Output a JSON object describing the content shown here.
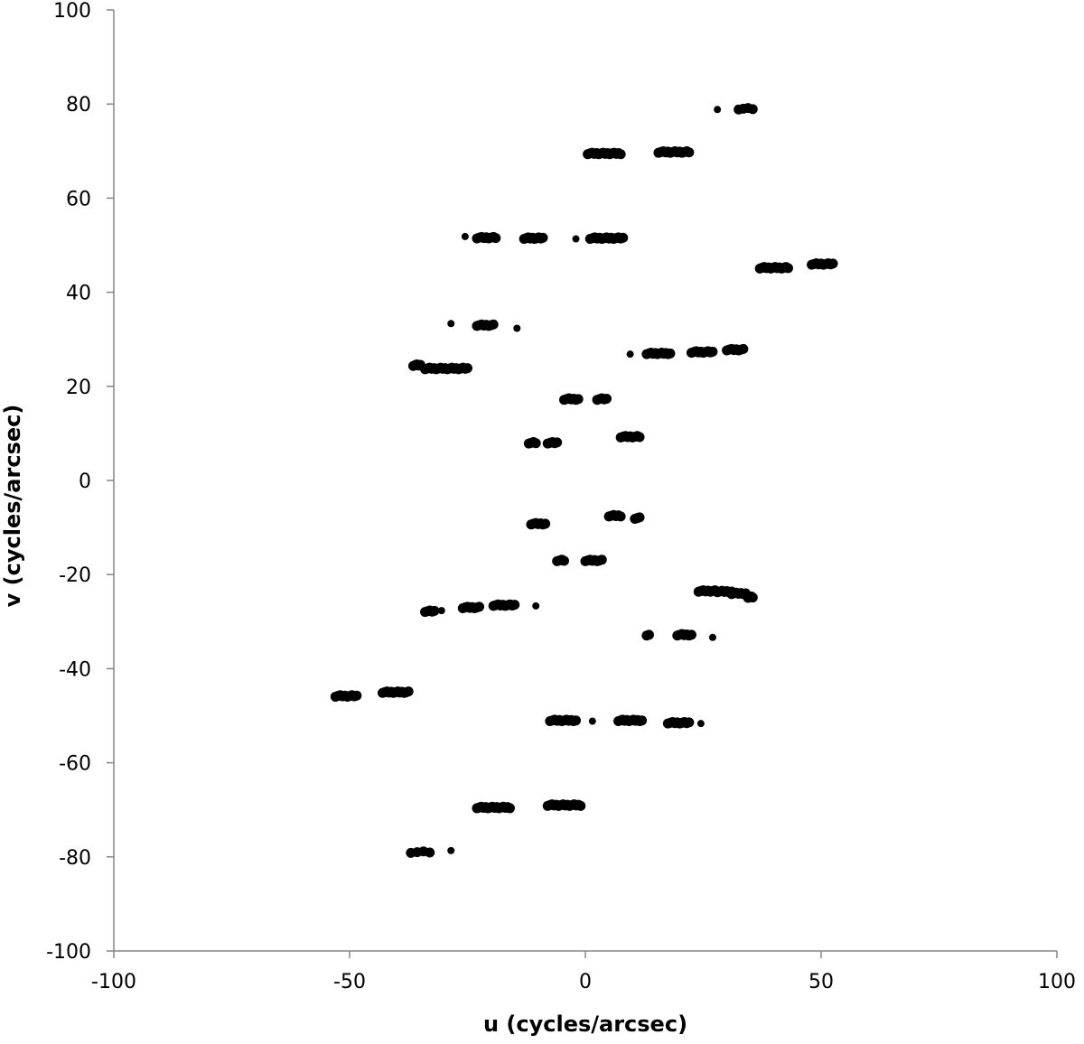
{
  "chart_data": {
    "type": "scatter",
    "title": "",
    "xlabel": "u (cycles/arcsec)",
    "ylabel": "v (cycles/arcsec)",
    "xlim": [
      -100,
      100
    ],
    "ylim": [
      -100,
      100
    ],
    "x_ticks": [
      -100,
      -50,
      0,
      50,
      100
    ],
    "y_ticks": [
      -100,
      -80,
      -60,
      -40,
      -20,
      0,
      20,
      40,
      60,
      80,
      100
    ],
    "x_tick_labels": [
      "-100",
      "-50",
      "0",
      "50",
      "100"
    ],
    "y_tick_labels": [
      "-100",
      "-80",
      "-60",
      "-40",
      "-20",
      "0",
      "20",
      "40",
      "60",
      "80",
      "100"
    ],
    "grid": false,
    "legend": "none",
    "marker_color": "#000000",
    "segments": [
      {
        "y": 79.0,
        "x_start": 28,
        "x_end": 28,
        "n": 1
      },
      {
        "y": 79.0,
        "x_start": 32.5,
        "x_end": 35.5,
        "n": 4
      },
      {
        "y": 69.5,
        "x_start": 0.5,
        "x_end": 7.5,
        "n": 16
      },
      {
        "y": 69.8,
        "x_start": 15.5,
        "x_end": 22,
        "n": 14
      },
      {
        "y": 52.0,
        "x_start": -25.5,
        "x_end": -25.5,
        "n": 1
      },
      {
        "y": 51.6,
        "x_start": -23,
        "x_end": -19,
        "n": 9
      },
      {
        "y": 51.5,
        "x_start": -13,
        "x_end": -9,
        "n": 10
      },
      {
        "y": 51.5,
        "x_start": -2,
        "x_end": -2,
        "n": 1
      },
      {
        "y": 51.5,
        "x_start": 1,
        "x_end": 8,
        "n": 15
      },
      {
        "y": 45.2,
        "x_start": 37,
        "x_end": 43,
        "n": 14
      },
      {
        "y": 46.0,
        "x_start": 48,
        "x_end": 52.5,
        "n": 10
      },
      {
        "y": 33.5,
        "x_start": -28.5,
        "x_end": -28.5,
        "n": 1
      },
      {
        "y": 33.0,
        "x_start": -23,
        "x_end": -19.5,
        "n": 8
      },
      {
        "y": 32.5,
        "x_start": -14.5,
        "x_end": -14.5,
        "n": 1
      },
      {
        "y": 24.5,
        "x_start": -36.5,
        "x_end": -35,
        "n": 5
      },
      {
        "y": 23.8,
        "x_start": -34,
        "x_end": -25,
        "n": 20
      },
      {
        "y": 27.0,
        "x_start": 9.5,
        "x_end": 9.5,
        "n": 1
      },
      {
        "y": 27.0,
        "x_start": 13,
        "x_end": 18,
        "n": 12
      },
      {
        "y": 27.3,
        "x_start": 22.5,
        "x_end": 27,
        "n": 10
      },
      {
        "y": 27.8,
        "x_start": 30,
        "x_end": 33.5,
        "n": 8
      },
      {
        "y": 17.3,
        "x_start": -4.5,
        "x_end": -1.5,
        "n": 7
      },
      {
        "y": 17.3,
        "x_start": 2.5,
        "x_end": 4.5,
        "n": 5
      },
      {
        "y": 8.0,
        "x_start": -12,
        "x_end": -10.5,
        "n": 4
      },
      {
        "y": 8.0,
        "x_start": -8,
        "x_end": -6,
        "n": 5
      },
      {
        "y": 9.3,
        "x_start": 7.5,
        "x_end": 11.5,
        "n": 9
      },
      {
        "y": -7.5,
        "x_start": 5,
        "x_end": 7.5,
        "n": 6
      },
      {
        "y": -8.0,
        "x_start": 10.5,
        "x_end": 11.5,
        "n": 3
      },
      {
        "y": -9.2,
        "x_start": -11.5,
        "x_end": -8.5,
        "n": 7
      },
      {
        "y": -17.0,
        "x_start": -6,
        "x_end": -4.5,
        "n": 4
      },
      {
        "y": -17.0,
        "x_start": 0,
        "x_end": 3.5,
        "n": 8
      },
      {
        "y": -23.5,
        "x_start": 24,
        "x_end": 27.5,
        "n": 8
      },
      {
        "y": -23.6,
        "x_start": 28,
        "x_end": 31,
        "n": 7
      },
      {
        "y": -24.0,
        "x_start": 31,
        "x_end": 34,
        "n": 7
      },
      {
        "y": -24.8,
        "x_start": 34.5,
        "x_end": 35.5,
        "n": 4
      },
      {
        "y": -26.5,
        "x_start": -19.5,
        "x_end": -15,
        "n": 10
      },
      {
        "y": -26.5,
        "x_start": -10.5,
        "x_end": -10.5,
        "n": 1
      },
      {
        "y": -27.0,
        "x_start": -26,
        "x_end": -22.5,
        "n": 8
      },
      {
        "y": -27.8,
        "x_start": -34,
        "x_end": -32,
        "n": 5
      },
      {
        "y": -27.5,
        "x_start": -30.5,
        "x_end": -30.5,
        "n": 1
      },
      {
        "y": -32.8,
        "x_start": 13,
        "x_end": 13.5,
        "n": 2
      },
      {
        "y": -32.8,
        "x_start": 19.5,
        "x_end": 22.5,
        "n": 7
      },
      {
        "y": -33.2,
        "x_start": 27,
        "x_end": 27,
        "n": 1
      },
      {
        "y": -45.0,
        "x_start": -43,
        "x_end": -37.5,
        "n": 13
      },
      {
        "y": -45.8,
        "x_start": -53,
        "x_end": -48.5,
        "n": 10
      },
      {
        "y": -51.0,
        "x_start": -7.5,
        "x_end": -2,
        "n": 12
      },
      {
        "y": -51.0,
        "x_start": 1.5,
        "x_end": 1.5,
        "n": 1
      },
      {
        "y": -51.0,
        "x_start": 7,
        "x_end": 12,
        "n": 12
      },
      {
        "y": -51.5,
        "x_start": 17.5,
        "x_end": 22,
        "n": 10
      },
      {
        "y": -51.5,
        "x_start": 24.5,
        "x_end": 24.5,
        "n": 1
      },
      {
        "y": -69.0,
        "x_start": -8,
        "x_end": -1,
        "n": 16
      },
      {
        "y": -69.5,
        "x_start": -23,
        "x_end": -16,
        "n": 16
      },
      {
        "y": -79.0,
        "x_start": -37,
        "x_end": -33,
        "n": 4
      },
      {
        "y": -78.5,
        "x_start": -28.5,
        "x_end": -28.5,
        "n": 1
      }
    ]
  }
}
